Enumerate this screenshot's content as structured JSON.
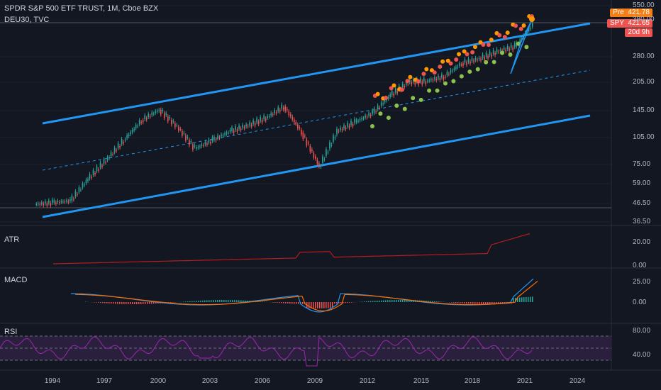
{
  "header": {
    "title": "SPDR S&P 500 ETF TRUST, 1M, Cboe BZX",
    "compare": "DEU30, TVC"
  },
  "price_tags": [
    {
      "label": "Pre",
      "value": "421.78",
      "color": "#f57f17"
    },
    {
      "label": "SPY",
      "value": "421.65",
      "color": "#ef5350"
    },
    {
      "label": "",
      "value": "20d 9h",
      "color": "#ef5350"
    }
  ],
  "panes": {
    "atr": {
      "label": "ATR",
      "ticks": [
        "20.00",
        "0.00"
      ]
    },
    "macd": {
      "label": "MACD",
      "ticks": [
        "25.00",
        "0.00"
      ]
    },
    "rsi": {
      "label": "RSI",
      "ticks": [
        "80.00",
        "40.00"
      ]
    }
  },
  "price_axis": [
    "550.00",
    "380.00",
    "280.00",
    "205.00",
    "145.00",
    "105.00",
    "75.00",
    "59.00",
    "46.50",
    "36.50"
  ],
  "time_axis": [
    "1994",
    "1997",
    "2000",
    "2003",
    "2006",
    "2009",
    "2012",
    "2015",
    "2018",
    "2021",
    "2024"
  ],
  "colors": {
    "background": "#131722",
    "channel": "#2196f3",
    "atr_line": "#b71c1c",
    "macd_line": "#2196f3",
    "signal_line": "#ff6d00",
    "rsi_line": "#9c27b0",
    "rsi_band": "#2a1f3d",
    "up": "#26a69a",
    "down": "#ef5350"
  },
  "chart_data": {
    "type": "line",
    "title": "SPDR S&P 500 ETF TRUST, 1M, Cboe BZX",
    "x": [
      "1993",
      "1994",
      "1995",
      "1996",
      "1997",
      "1998",
      "1999",
      "2000",
      "2001",
      "2002",
      "2003",
      "2004",
      "2005",
      "2006",
      "2007",
      "2008",
      "2009",
      "2010",
      "2011",
      "2012",
      "2013",
      "2014",
      "2015",
      "2016",
      "2017",
      "2018",
      "2019",
      "2020",
      "2021"
    ],
    "series": [
      {
        "name": "SPY",
        "values": [
          45,
          46,
          47,
          62,
          78,
          100,
          128,
          146,
          118,
          90,
          100,
          112,
          120,
          132,
          152,
          110,
          72,
          112,
          125,
          140,
          175,
          205,
          208,
          220,
          260,
          275,
          300,
          320,
          421
        ]
      }
    ],
    "ylim": [
      36.5,
      550
    ],
    "yscale": "log"
  }
}
